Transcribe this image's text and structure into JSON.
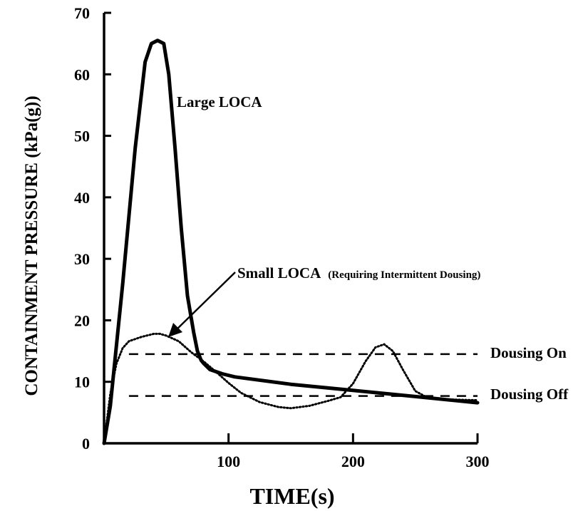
{
  "chart_data": {
    "type": "line",
    "xlabel": "TIME(s)",
    "ylabel": "CONTAINMENT PRESSURE (kPa(g))",
    "xlim": [
      0,
      300
    ],
    "ylim": [
      0,
      70
    ],
    "x_ticks": [
      100,
      200,
      300
    ],
    "y_ticks": [
      0,
      10,
      20,
      30,
      40,
      50,
      60,
      70
    ],
    "grid": false,
    "series": [
      {
        "name": "Large LOCA",
        "style": "solid",
        "x": [
          0,
          5,
          15,
          25,
          33,
          38,
          43,
          48,
          52,
          57,
          62,
          67,
          72,
          75,
          78,
          80,
          85,
          95,
          105,
          150,
          200,
          250,
          300
        ],
        "y": [
          0,
          6,
          26,
          48,
          62,
          65,
          65.5,
          65,
          60,
          48,
          35,
          24,
          18,
          15,
          13.5,
          13,
          12,
          11.3,
          10.8,
          9.6,
          8.6,
          7.6,
          6.6
        ]
      },
      {
        "name": "Small LOCA",
        "style": "dotted",
        "x": [
          0,
          5,
          10,
          15,
          20,
          30,
          40,
          45,
          50,
          60,
          70,
          80,
          90,
          100,
          110,
          125,
          140,
          150,
          165,
          180,
          190,
          200,
          210,
          218,
          225,
          232,
          240,
          250,
          260,
          270,
          280,
          300
        ],
        "y": [
          0,
          8,
          13,
          15.5,
          16.6,
          17.3,
          17.8,
          17.8,
          17.5,
          16.6,
          14.8,
          13.3,
          11.6,
          9.8,
          8.2,
          6.7,
          5.9,
          5.7,
          6.1,
          6.9,
          7.5,
          9.7,
          13.3,
          15.6,
          16.1,
          15,
          12,
          8.5,
          7.4,
          7.2,
          7.1,
          7
        ]
      },
      {
        "name": "Dousing On",
        "style": "dashed",
        "x": [
          20,
          300
        ],
        "y": [
          14.5,
          14.5
        ]
      },
      {
        "name": "Dousing Off",
        "style": "dashed",
        "x": [
          20,
          300
        ],
        "y": [
          7.7,
          7.7
        ]
      }
    ],
    "annotations": {
      "large_loca": "Large LOCA",
      "small_loca": "Small LOCA",
      "small_loca_note": "(Requiring Intermittent Dousing)",
      "dousing_on": "Dousing On",
      "dousing_off": "Dousing Off"
    }
  }
}
